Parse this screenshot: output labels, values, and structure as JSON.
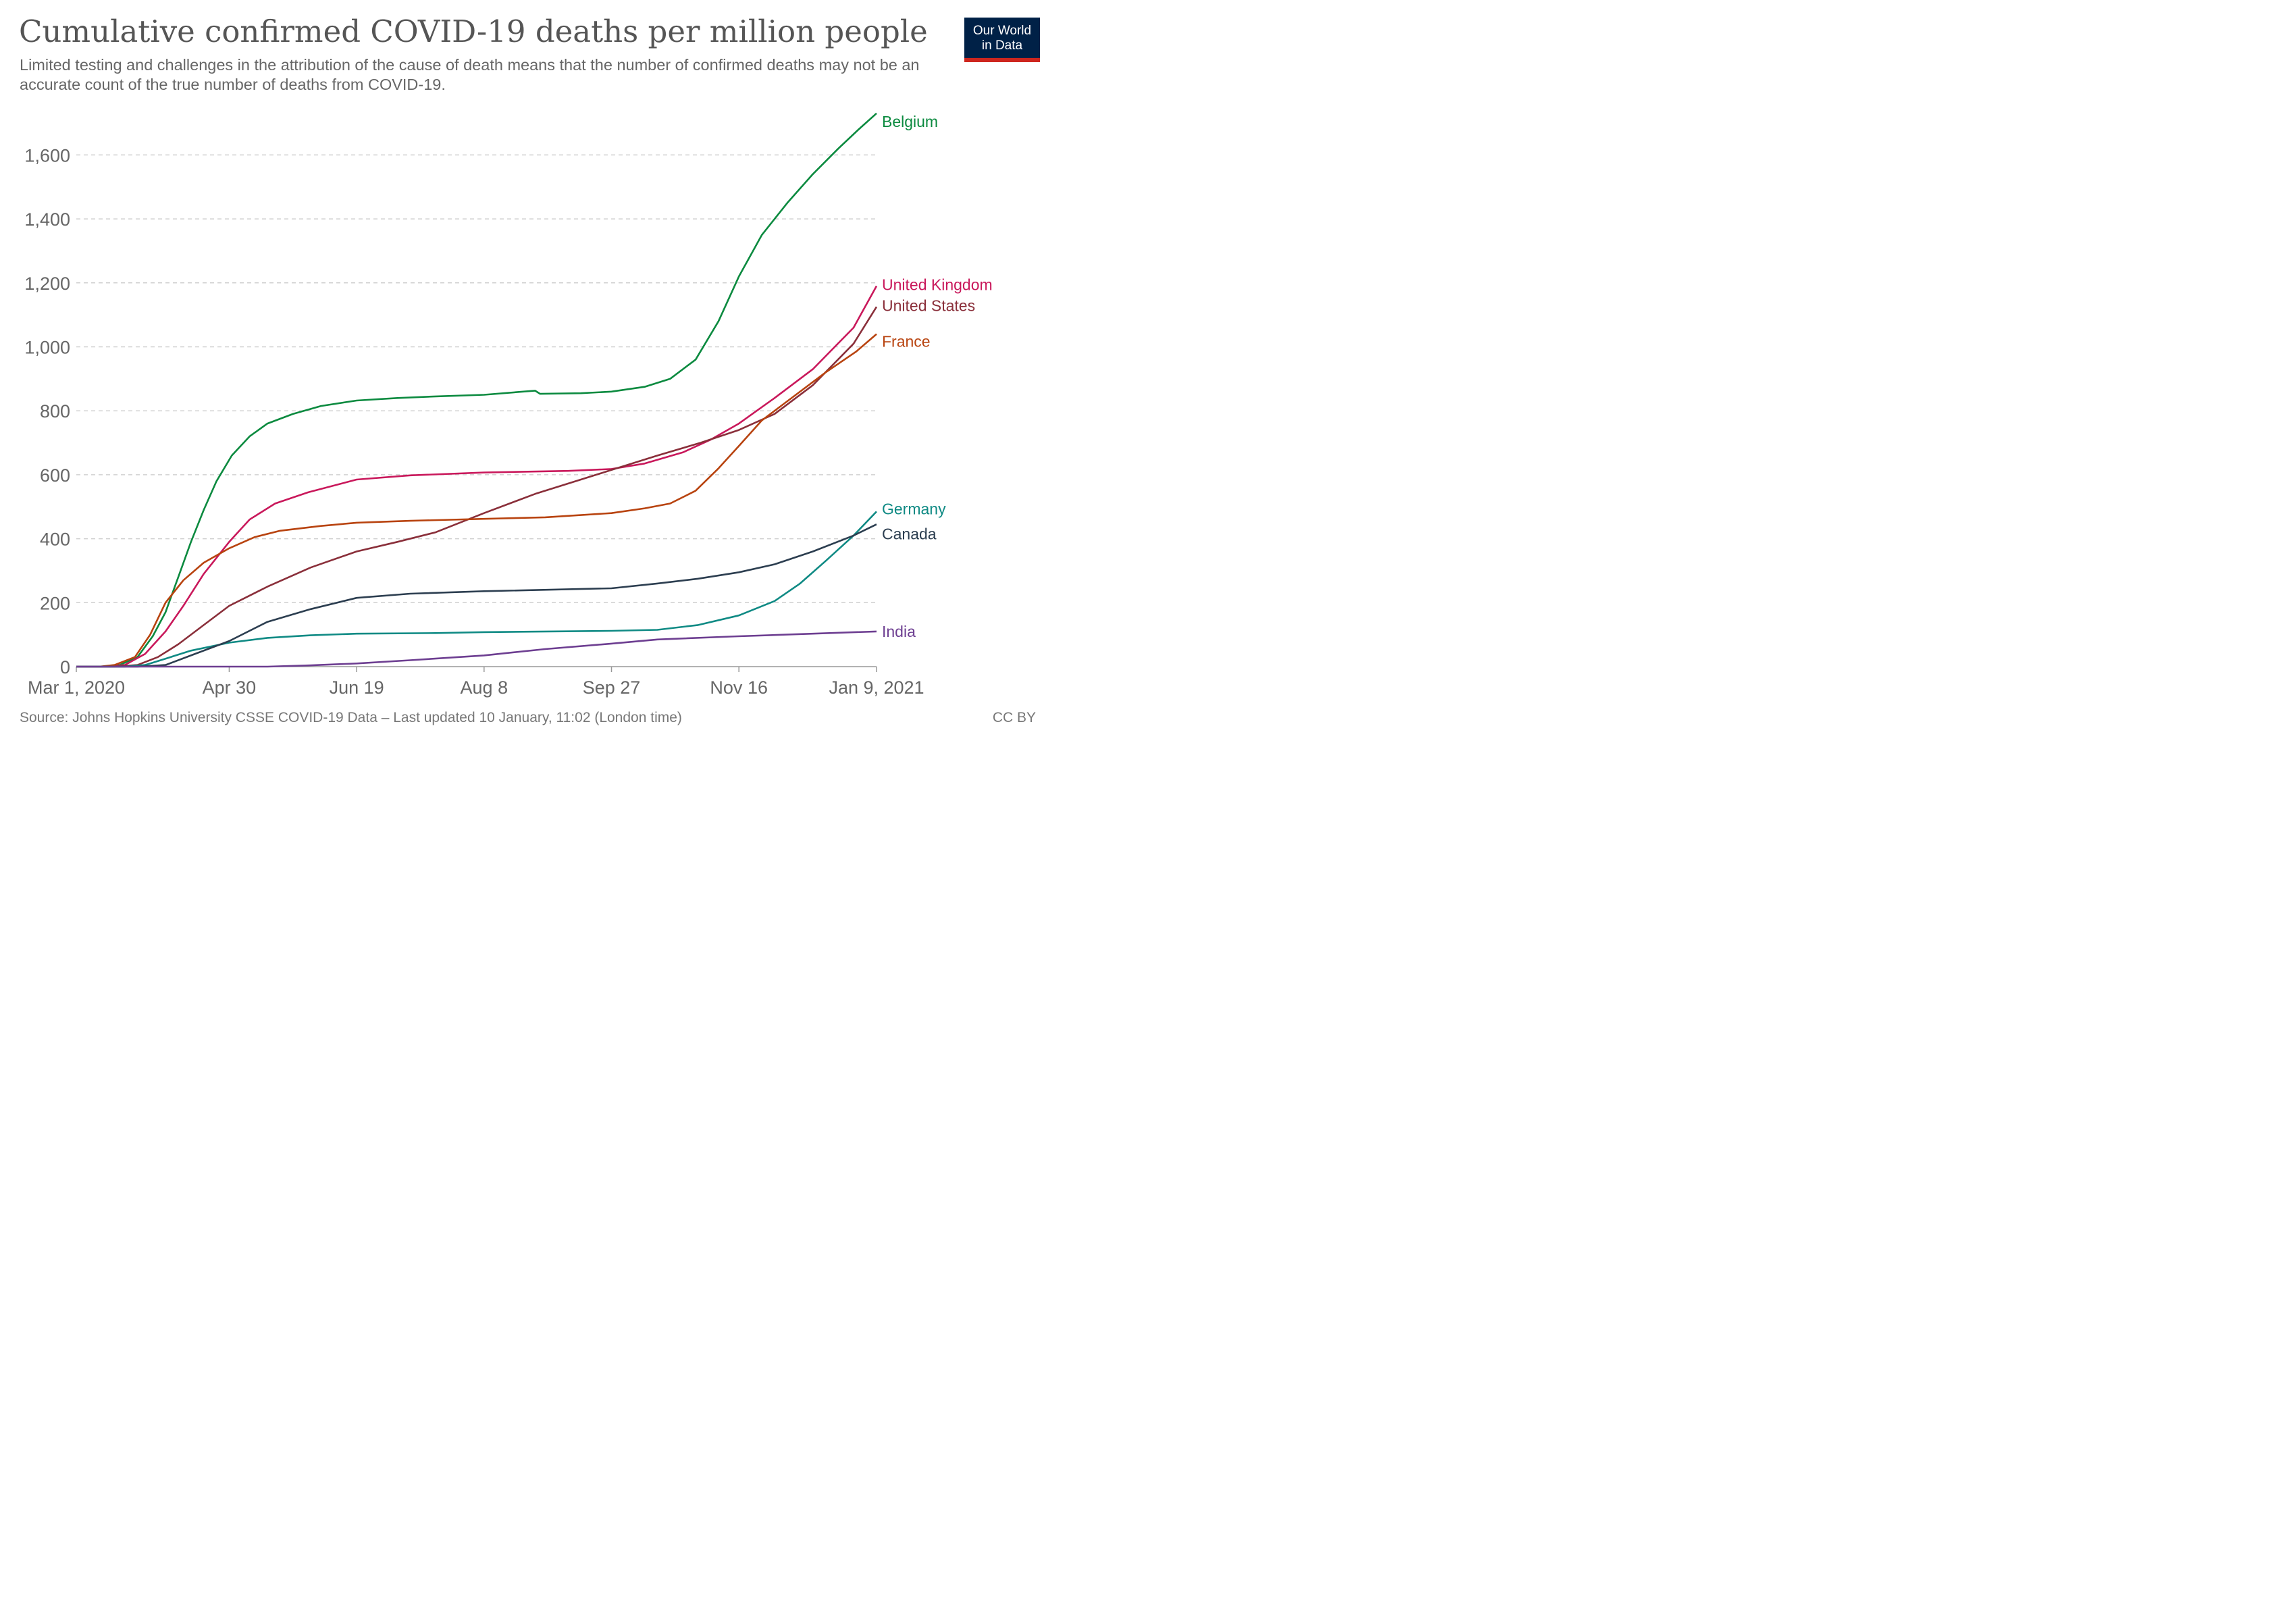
{
  "header": {
    "title": "Cumulative confirmed COVID-19 deaths per million people",
    "subtitle": "Limited testing and challenges in the attribution of the cause of death means that the number of confirmed deaths may not be an accurate count of the true number of deaths from COVID-19.",
    "logo_line1": "Our World",
    "logo_line2": "in Data"
  },
  "footer": {
    "source": "Source: Johns Hopkins University CSSE COVID-19 Data – Last updated 10 January, 11:02 (London time)",
    "license": "CC BY"
  },
  "chart_data": {
    "type": "line",
    "title": "Cumulative confirmed COVID-19 deaths per million people",
    "xlabel": "",
    "ylabel": "",
    "x_range": [
      "2020-03-01",
      "2021-01-09"
    ],
    "ylim": [
      0,
      1700
    ],
    "y_ticks": [
      0,
      200,
      400,
      600,
      800,
      1000,
      1200,
      1400,
      1600
    ],
    "y_tick_labels": [
      "0",
      "200",
      "400",
      "600",
      "800",
      "1,000",
      "1,200",
      "1,400",
      "1,600"
    ],
    "x_ticks": [
      "2020-03-01",
      "2020-04-30",
      "2020-06-19",
      "2020-08-08",
      "2020-09-27",
      "2020-11-16",
      "2021-01-09"
    ],
    "x_tick_labels": [
      "Mar 1, 2020",
      "Apr 30",
      "Jun 19",
      "Aug 8",
      "Sep 27",
      "Nov 16",
      "Jan 9, 2021"
    ],
    "grid": "horizontal dashed",
    "legend": "labels at line ends (right)",
    "series": [
      {
        "name": "Belgium",
        "color": "#0b8a3f",
        "points": [
          [
            "2020-03-01",
            0
          ],
          [
            "2020-03-11",
            0
          ],
          [
            "2020-03-18",
            5
          ],
          [
            "2020-03-25",
            30
          ],
          [
            "2020-03-31",
            95
          ],
          [
            "2020-04-05",
            170
          ],
          [
            "2020-04-10",
            280
          ],
          [
            "2020-04-15",
            390
          ],
          [
            "2020-04-20",
            490
          ],
          [
            "2020-04-25",
            580
          ],
          [
            "2020-05-01",
            660
          ],
          [
            "2020-05-08",
            720
          ],
          [
            "2020-05-15",
            760
          ],
          [
            "2020-05-25",
            790
          ],
          [
            "2020-06-05",
            815
          ],
          [
            "2020-06-19",
            832
          ],
          [
            "2020-07-05",
            840
          ],
          [
            "2020-07-20",
            845
          ],
          [
            "2020-08-08",
            850
          ],
          [
            "2020-08-28",
            863
          ],
          [
            "2020-08-30",
            853
          ],
          [
            "2020-09-15",
            855
          ],
          [
            "2020-09-27",
            860
          ],
          [
            "2020-10-10",
            875
          ],
          [
            "2020-10-20",
            900
          ],
          [
            "2020-10-30",
            960
          ],
          [
            "2020-11-08",
            1080
          ],
          [
            "2020-11-16",
            1220
          ],
          [
            "2020-11-25",
            1350
          ],
          [
            "2020-12-05",
            1450
          ],
          [
            "2020-12-15",
            1540
          ],
          [
            "2020-12-25",
            1620
          ],
          [
            "2021-01-02",
            1680
          ],
          [
            "2021-01-09",
            1730
          ]
        ]
      },
      {
        "name": "United Kingdom",
        "color": "#c9185b",
        "points": [
          [
            "2020-03-01",
            0
          ],
          [
            "2020-03-14",
            0
          ],
          [
            "2020-03-20",
            5
          ],
          [
            "2020-03-28",
            40
          ],
          [
            "2020-04-05",
            110
          ],
          [
            "2020-04-12",
            190
          ],
          [
            "2020-04-20",
            290
          ],
          [
            "2020-04-30",
            390
          ],
          [
            "2020-05-08",
            460
          ],
          [
            "2020-05-18",
            510
          ],
          [
            "2020-05-31",
            545
          ],
          [
            "2020-06-19",
            585
          ],
          [
            "2020-07-10",
            598
          ],
          [
            "2020-08-08",
            607
          ],
          [
            "2020-09-10",
            612
          ],
          [
            "2020-09-27",
            618
          ],
          [
            "2020-10-10",
            635
          ],
          [
            "2020-10-25",
            670
          ],
          [
            "2020-11-05",
            710
          ],
          [
            "2020-11-16",
            760
          ],
          [
            "2020-11-30",
            840
          ],
          [
            "2020-12-15",
            930
          ],
          [
            "2020-12-31",
            1060
          ],
          [
            "2021-01-09",
            1190
          ]
        ]
      },
      {
        "name": "United States",
        "color": "#8a2f3a",
        "points": [
          [
            "2020-03-01",
            0
          ],
          [
            "2020-03-16",
            0
          ],
          [
            "2020-03-25",
            5
          ],
          [
            "2020-04-02",
            30
          ],
          [
            "2020-04-10",
            70
          ],
          [
            "2020-04-20",
            130
          ],
          [
            "2020-04-30",
            190
          ],
          [
            "2020-05-15",
            250
          ],
          [
            "2020-06-01",
            310
          ],
          [
            "2020-06-19",
            360
          ],
          [
            "2020-07-05",
            390
          ],
          [
            "2020-07-20",
            420
          ],
          [
            "2020-08-08",
            480
          ],
          [
            "2020-08-28",
            540
          ],
          [
            "2020-09-15",
            585
          ],
          [
            "2020-09-27",
            615
          ],
          [
            "2020-10-15",
            660
          ],
          [
            "2020-11-01",
            700
          ],
          [
            "2020-11-16",
            740
          ],
          [
            "2020-11-30",
            790
          ],
          [
            "2020-12-15",
            880
          ],
          [
            "2020-12-31",
            1010
          ],
          [
            "2021-01-09",
            1125
          ]
        ]
      },
      {
        "name": "France",
        "color": "#b8430f",
        "points": [
          [
            "2020-03-01",
            0
          ],
          [
            "2020-03-10",
            0
          ],
          [
            "2020-03-16",
            5
          ],
          [
            "2020-03-24",
            30
          ],
          [
            "2020-03-30",
            100
          ],
          [
            "2020-04-05",
            200
          ],
          [
            "2020-04-12",
            270
          ],
          [
            "2020-04-20",
            325
          ],
          [
            "2020-04-30",
            370
          ],
          [
            "2020-05-10",
            405
          ],
          [
            "2020-05-20",
            425
          ],
          [
            "2020-06-05",
            440
          ],
          [
            "2020-06-19",
            450
          ],
          [
            "2020-07-10",
            456
          ],
          [
            "2020-08-08",
            462
          ],
          [
            "2020-09-01",
            467
          ],
          [
            "2020-09-27",
            480
          ],
          [
            "2020-10-10",
            495
          ],
          [
            "2020-10-20",
            510
          ],
          [
            "2020-10-30",
            550
          ],
          [
            "2020-11-08",
            620
          ],
          [
            "2020-11-16",
            690
          ],
          [
            "2020-11-25",
            770
          ],
          [
            "2020-12-05",
            830
          ],
          [
            "2020-12-20",
            920
          ],
          [
            "2021-01-01",
            985
          ],
          [
            "2021-01-09",
            1040
          ]
        ]
      },
      {
        "name": "Germany",
        "color": "#0f8a84",
        "points": [
          [
            "2020-03-01",
            0
          ],
          [
            "2020-03-20",
            0
          ],
          [
            "2020-03-28",
            5
          ],
          [
            "2020-04-05",
            25
          ],
          [
            "2020-04-15",
            50
          ],
          [
            "2020-04-30",
            75
          ],
          [
            "2020-05-15",
            90
          ],
          [
            "2020-06-01",
            98
          ],
          [
            "2020-06-19",
            103
          ],
          [
            "2020-07-20",
            105
          ],
          [
            "2020-08-08",
            108
          ],
          [
            "2020-09-27",
            112
          ],
          [
            "2020-10-15",
            115
          ],
          [
            "2020-10-31",
            130
          ],
          [
            "2020-11-16",
            160
          ],
          [
            "2020-11-30",
            205
          ],
          [
            "2020-12-10",
            260
          ],
          [
            "2020-12-20",
            330
          ],
          [
            "2020-12-31",
            410
          ],
          [
            "2021-01-09",
            485
          ]
        ]
      },
      {
        "name": "Canada",
        "color": "#2c3e50",
        "points": [
          [
            "2020-03-01",
            0
          ],
          [
            "2020-03-25",
            0
          ],
          [
            "2020-04-05",
            5
          ],
          [
            "2020-04-15",
            35
          ],
          [
            "2020-04-30",
            80
          ],
          [
            "2020-05-15",
            140
          ],
          [
            "2020-06-01",
            180
          ],
          [
            "2020-06-19",
            215
          ],
          [
            "2020-07-10",
            228
          ],
          [
            "2020-08-08",
            236
          ],
          [
            "2020-09-27",
            245
          ],
          [
            "2020-10-15",
            260
          ],
          [
            "2020-10-31",
            275
          ],
          [
            "2020-11-16",
            295
          ],
          [
            "2020-11-30",
            320
          ],
          [
            "2020-12-15",
            360
          ],
          [
            "2020-12-31",
            410
          ],
          [
            "2021-01-09",
            445
          ]
        ]
      },
      {
        "name": "India",
        "color": "#6d3e91",
        "points": [
          [
            "2020-03-01",
            0
          ],
          [
            "2020-05-15",
            0
          ],
          [
            "2020-06-01",
            4
          ],
          [
            "2020-06-19",
            10
          ],
          [
            "2020-07-10",
            20
          ],
          [
            "2020-08-08",
            35
          ],
          [
            "2020-09-01",
            55
          ],
          [
            "2020-09-27",
            72
          ],
          [
            "2020-10-15",
            85
          ],
          [
            "2020-11-16",
            95
          ],
          [
            "2020-12-15",
            103
          ],
          [
            "2021-01-09",
            110
          ]
        ]
      }
    ]
  }
}
